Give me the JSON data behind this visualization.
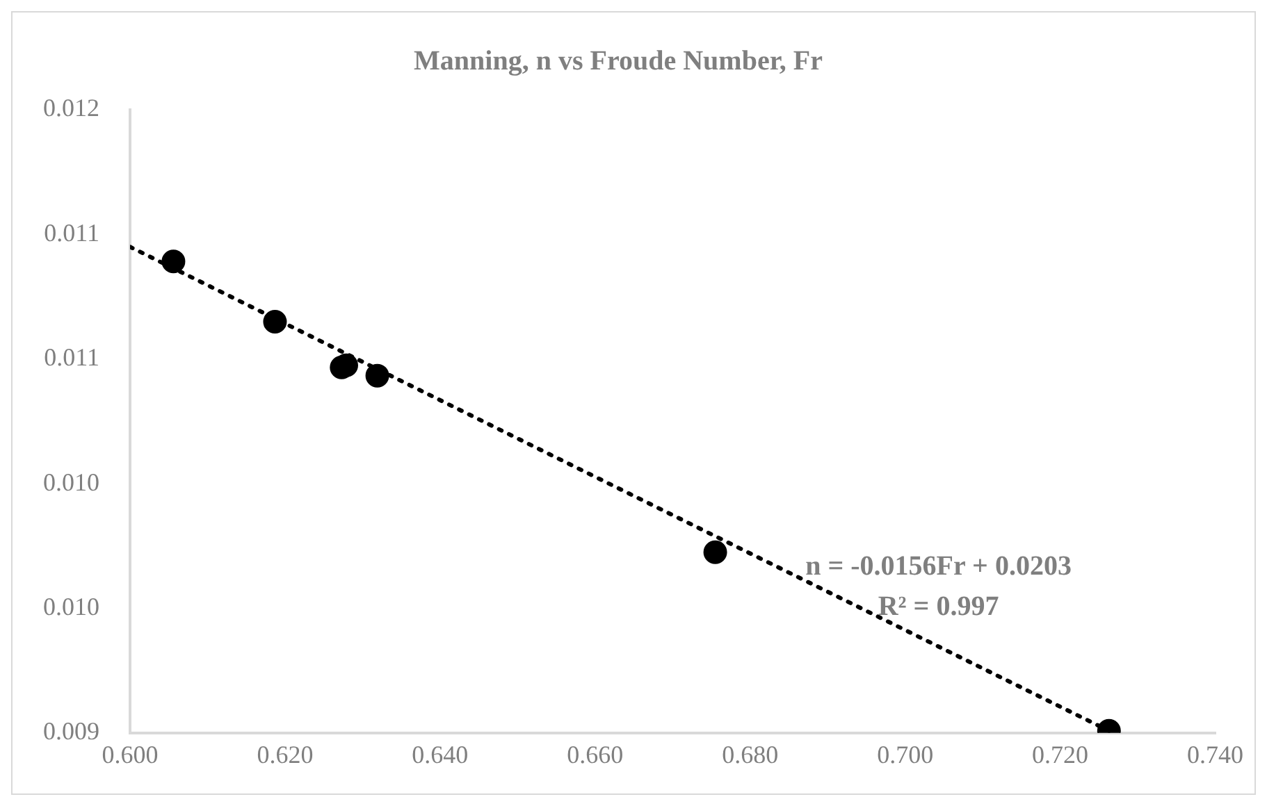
{
  "chart_data": {
    "type": "scatter",
    "title": "Manning, n vs Froude Number, Fr",
    "x": [
      0.6056,
      0.6187,
      0.6273,
      0.6279,
      0.6319,
      0.6755,
      0.7263
    ],
    "series": [
      {
        "color": "#000000",
        "marker": "circle",
        "values": [
          0.01127,
          0.01098,
          0.01076,
          0.01077,
          0.01072,
          0.00987,
          0.00901
        ]
      },
      {
        "type": "line",
        "color": "#000000",
        "line_style": "dotted",
        "marker": "none",
        "x": [
          0.6,
          0.7263
        ],
        "values": [
          0.01134,
          0.00901
        ]
      }
    ],
    "xlim": [
      0.6,
      0.74
    ],
    "xticks": [
      {
        "value": 0.6,
        "label": "0.600"
      },
      {
        "value": 0.62,
        "label": "0.620"
      },
      {
        "value": 0.64,
        "label": "0.640"
      },
      {
        "value": 0.66,
        "label": "0.660"
      },
      {
        "value": 0.68,
        "label": "0.680"
      },
      {
        "value": 0.7,
        "label": "0.700"
      },
      {
        "value": 0.72,
        "label": "0.720"
      },
      {
        "value": 0.74,
        "label": "0.740"
      }
    ],
    "ylim": [
      0.009,
      0.012
    ],
    "yticks": [
      {
        "value": 0.009,
        "label": "0.009"
      },
      {
        "value": 0.0096,
        "label": "0.010"
      },
      {
        "value": 0.0102,
        "label": "0.010"
      },
      {
        "value": 0.0108,
        "label": "0.011"
      },
      {
        "value": 0.0114,
        "label": "0.011"
      },
      {
        "value": 0.012,
        "label": "0.012"
      }
    ],
    "grid": false,
    "legend": false,
    "annotations": [
      "n = -0.0156Fr + 0.0203",
      "R² = 0.997"
    ]
  }
}
